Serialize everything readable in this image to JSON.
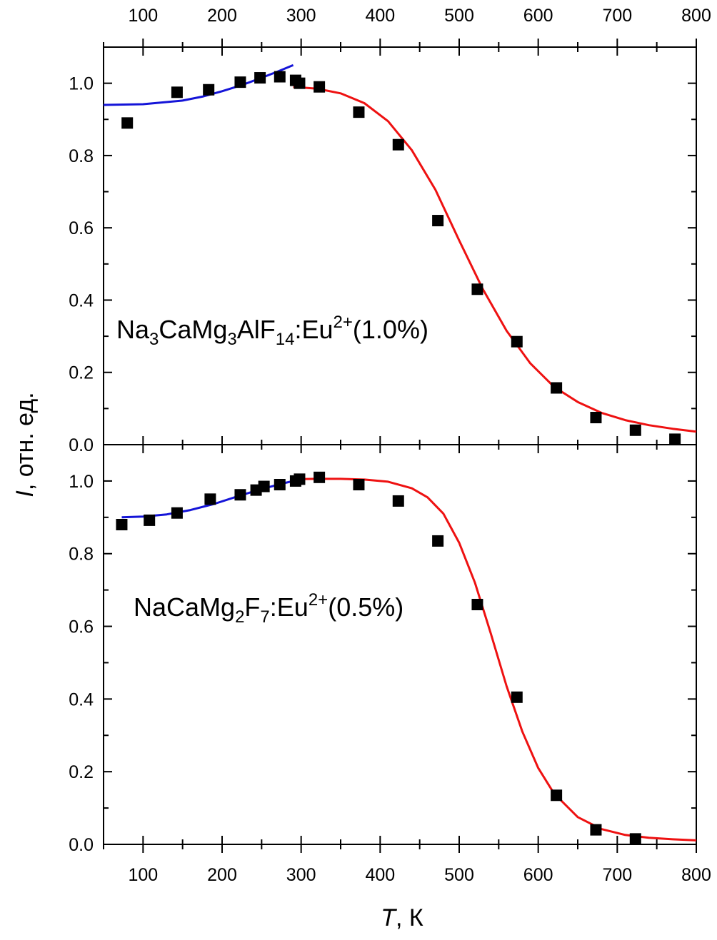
{
  "chart_data": [
    {
      "type": "scatter",
      "panel": "top",
      "sample_label": {
        "base": "Na",
        "sub1": "3",
        "mid1": "CaMg",
        "sub2": "3",
        "mid2": "AlF",
        "sub3": "14",
        "mid3": ":Eu",
        "sup": "2+",
        "tail": "(1.0%)"
      },
      "xlim": [
        50,
        800
      ],
      "ylim": [
        0,
        1.1
      ],
      "x_ticks": [
        "100",
        "200",
        "300",
        "400",
        "500",
        "600",
        "700",
        "800"
      ],
      "y_ticks": [
        "0.0",
        "0.2",
        "0.4",
        "0.6",
        "0.8",
        "1.0"
      ],
      "series": [
        {
          "marker": "square",
          "color": "#000000",
          "x": [
            80,
            143,
            183,
            223,
            248,
            273,
            293,
            298,
            323,
            373,
            423,
            473,
            523,
            573,
            623,
            673,
            723,
            773
          ],
          "y": [
            0.89,
            0.975,
            0.982,
            1.003,
            1.015,
            1.018,
            1.008,
            1.0,
            0.99,
            0.92,
            0.83,
            0.62,
            0.43,
            0.285,
            0.157,
            0.075,
            0.04,
            0.015
          ]
        },
        {
          "type": "line",
          "color": "#1414d8",
          "x": [
            50,
            100,
            150,
            175,
            200,
            225,
            250,
            270,
            290
          ],
          "y": [
            0.94,
            0.942,
            0.952,
            0.963,
            0.978,
            0.995,
            1.015,
            1.032,
            1.05
          ]
        },
        {
          "type": "line",
          "color": "#ee1111",
          "x": [
            290,
            320,
            350,
            380,
            410,
            440,
            470,
            500,
            530,
            560,
            590,
            620,
            650,
            680,
            710,
            740,
            770,
            800
          ],
          "y": [
            0.99,
            0.985,
            0.972,
            0.945,
            0.895,
            0.815,
            0.705,
            0.565,
            0.43,
            0.315,
            0.225,
            0.16,
            0.118,
            0.088,
            0.068,
            0.054,
            0.044,
            0.036
          ]
        }
      ]
    },
    {
      "type": "scatter",
      "panel": "bottom",
      "sample_label": {
        "base": "NaCaMg",
        "sub1": "2",
        "mid1": "F",
        "sub2": "7",
        "mid2": ":Eu",
        "sup": "2+",
        "tail": "(0.5%)"
      },
      "xlim": [
        50,
        800
      ],
      "ylim": [
        0,
        1.1
      ],
      "x_ticks": [
        "100",
        "200",
        "300",
        "400",
        "500",
        "600",
        "700",
        "800"
      ],
      "y_ticks": [
        "0.0",
        "0.2",
        "0.4",
        "0.6",
        "0.8",
        "1.0"
      ],
      "series": [
        {
          "marker": "square",
          "color": "#000000",
          "x": [
            73,
            108,
            143,
            185,
            223,
            243,
            253,
            273,
            293,
            298,
            323,
            373,
            423,
            473,
            523,
            573,
            623,
            673,
            723
          ],
          "y": [
            0.88,
            0.892,
            0.912,
            0.95,
            0.962,
            0.975,
            0.985,
            0.99,
            1.0,
            1.005,
            1.01,
            0.99,
            0.945,
            0.835,
            0.66,
            0.405,
            0.135,
            0.04,
            0.015
          ]
        },
        {
          "type": "line",
          "color": "#1414d8",
          "x": [
            73,
            100,
            130,
            160,
            190,
            220,
            250,
            280,
            300
          ],
          "y": [
            0.9,
            0.902,
            0.908,
            0.92,
            0.937,
            0.958,
            0.978,
            0.995,
            1.005
          ]
        },
        {
          "type": "line",
          "color": "#ee1111",
          "x": [
            290,
            320,
            350,
            380,
            410,
            440,
            460,
            480,
            500,
            520,
            540,
            560,
            580,
            600,
            620,
            650,
            680,
            710,
            740,
            770,
            800
          ],
          "y": [
            1.005,
            1.006,
            1.006,
            1.004,
            0.998,
            0.98,
            0.955,
            0.91,
            0.83,
            0.72,
            0.58,
            0.435,
            0.31,
            0.21,
            0.14,
            0.075,
            0.042,
            0.026,
            0.018,
            0.014,
            0.011
          ]
        }
      ]
    }
  ],
  "axes": {
    "ylabel_italic": "I",
    "ylabel_rest": ", отн. ед.",
    "xlabel_italic": "T",
    "xlabel_rest": ", К"
  }
}
